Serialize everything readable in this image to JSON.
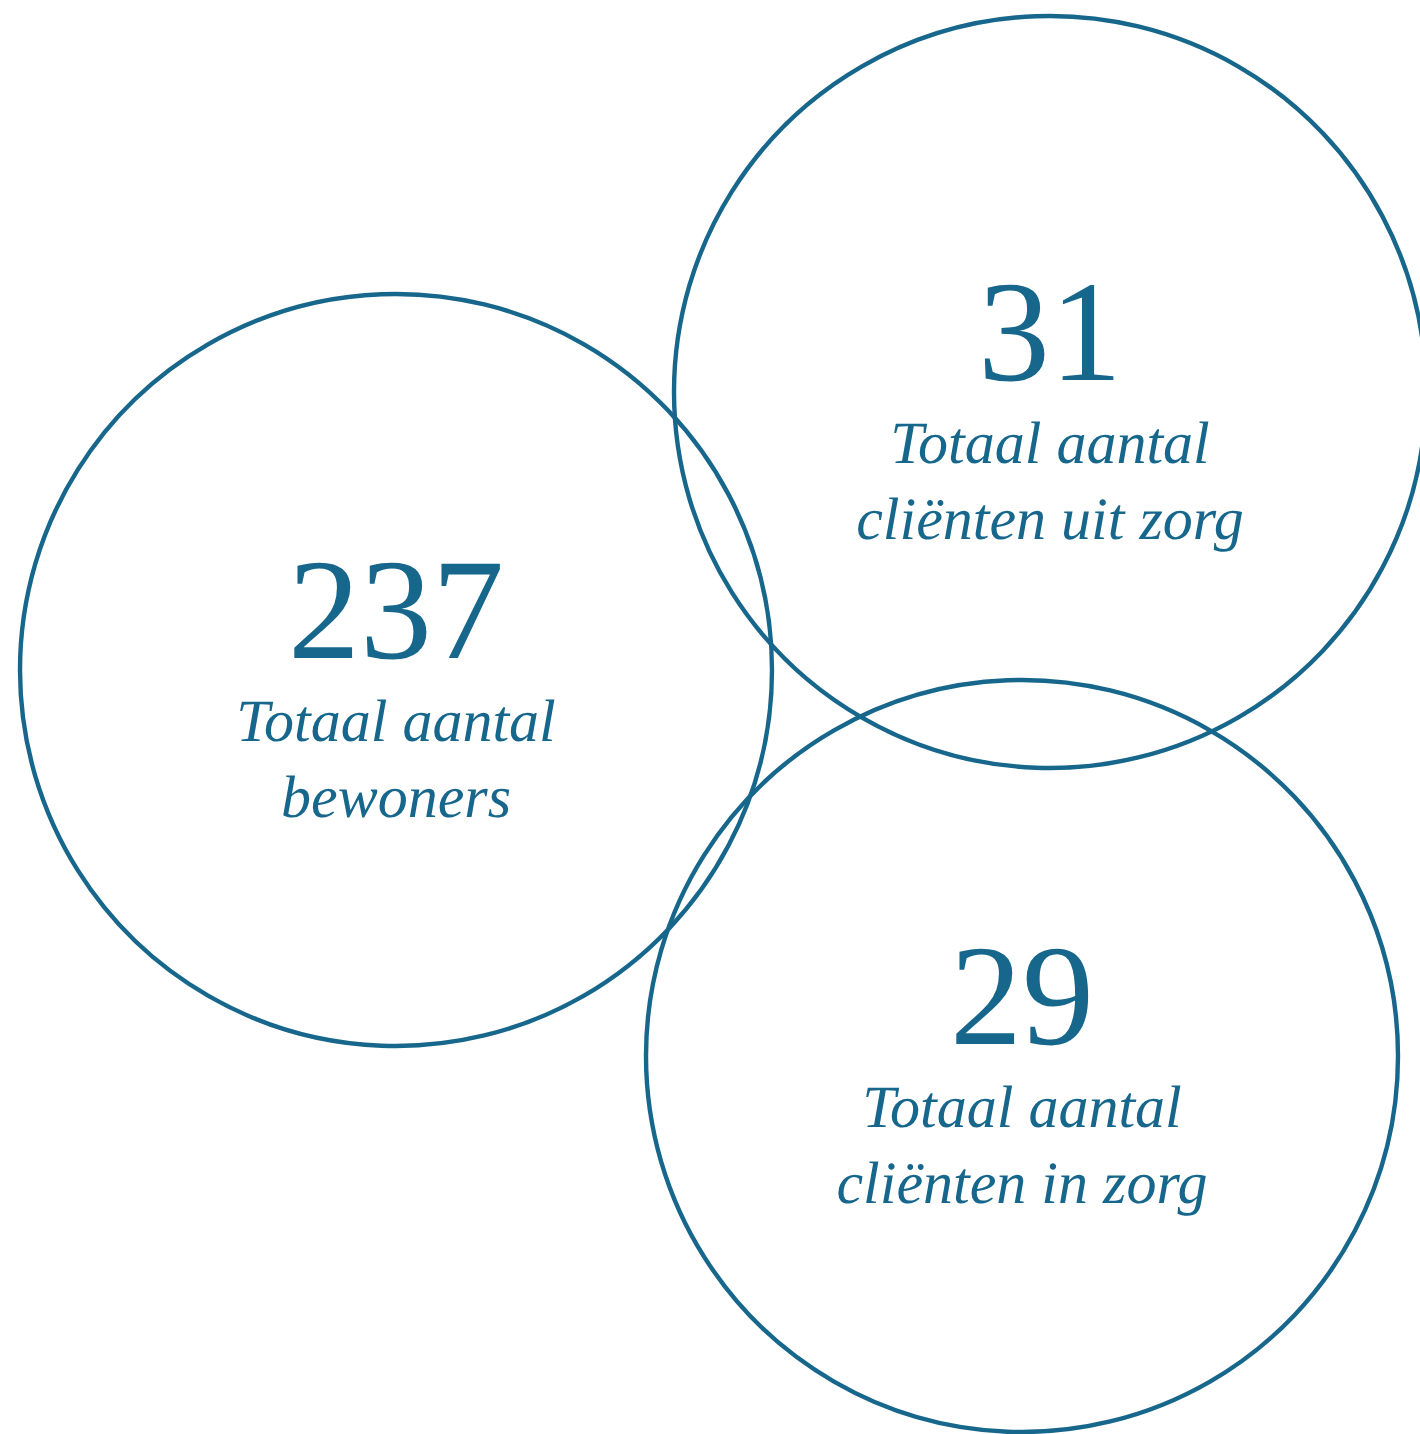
{
  "chart_data": {
    "type": "other",
    "categories": [
      "Totaal aantal\nbewoners",
      "Totaal aantal\ncliënten uit zorg",
      "Totaal aantal\ncliënten in zorg"
    ],
    "values": [
      237,
      31,
      29
    ],
    "color": "#17678c",
    "data_labels": true
  }
}
